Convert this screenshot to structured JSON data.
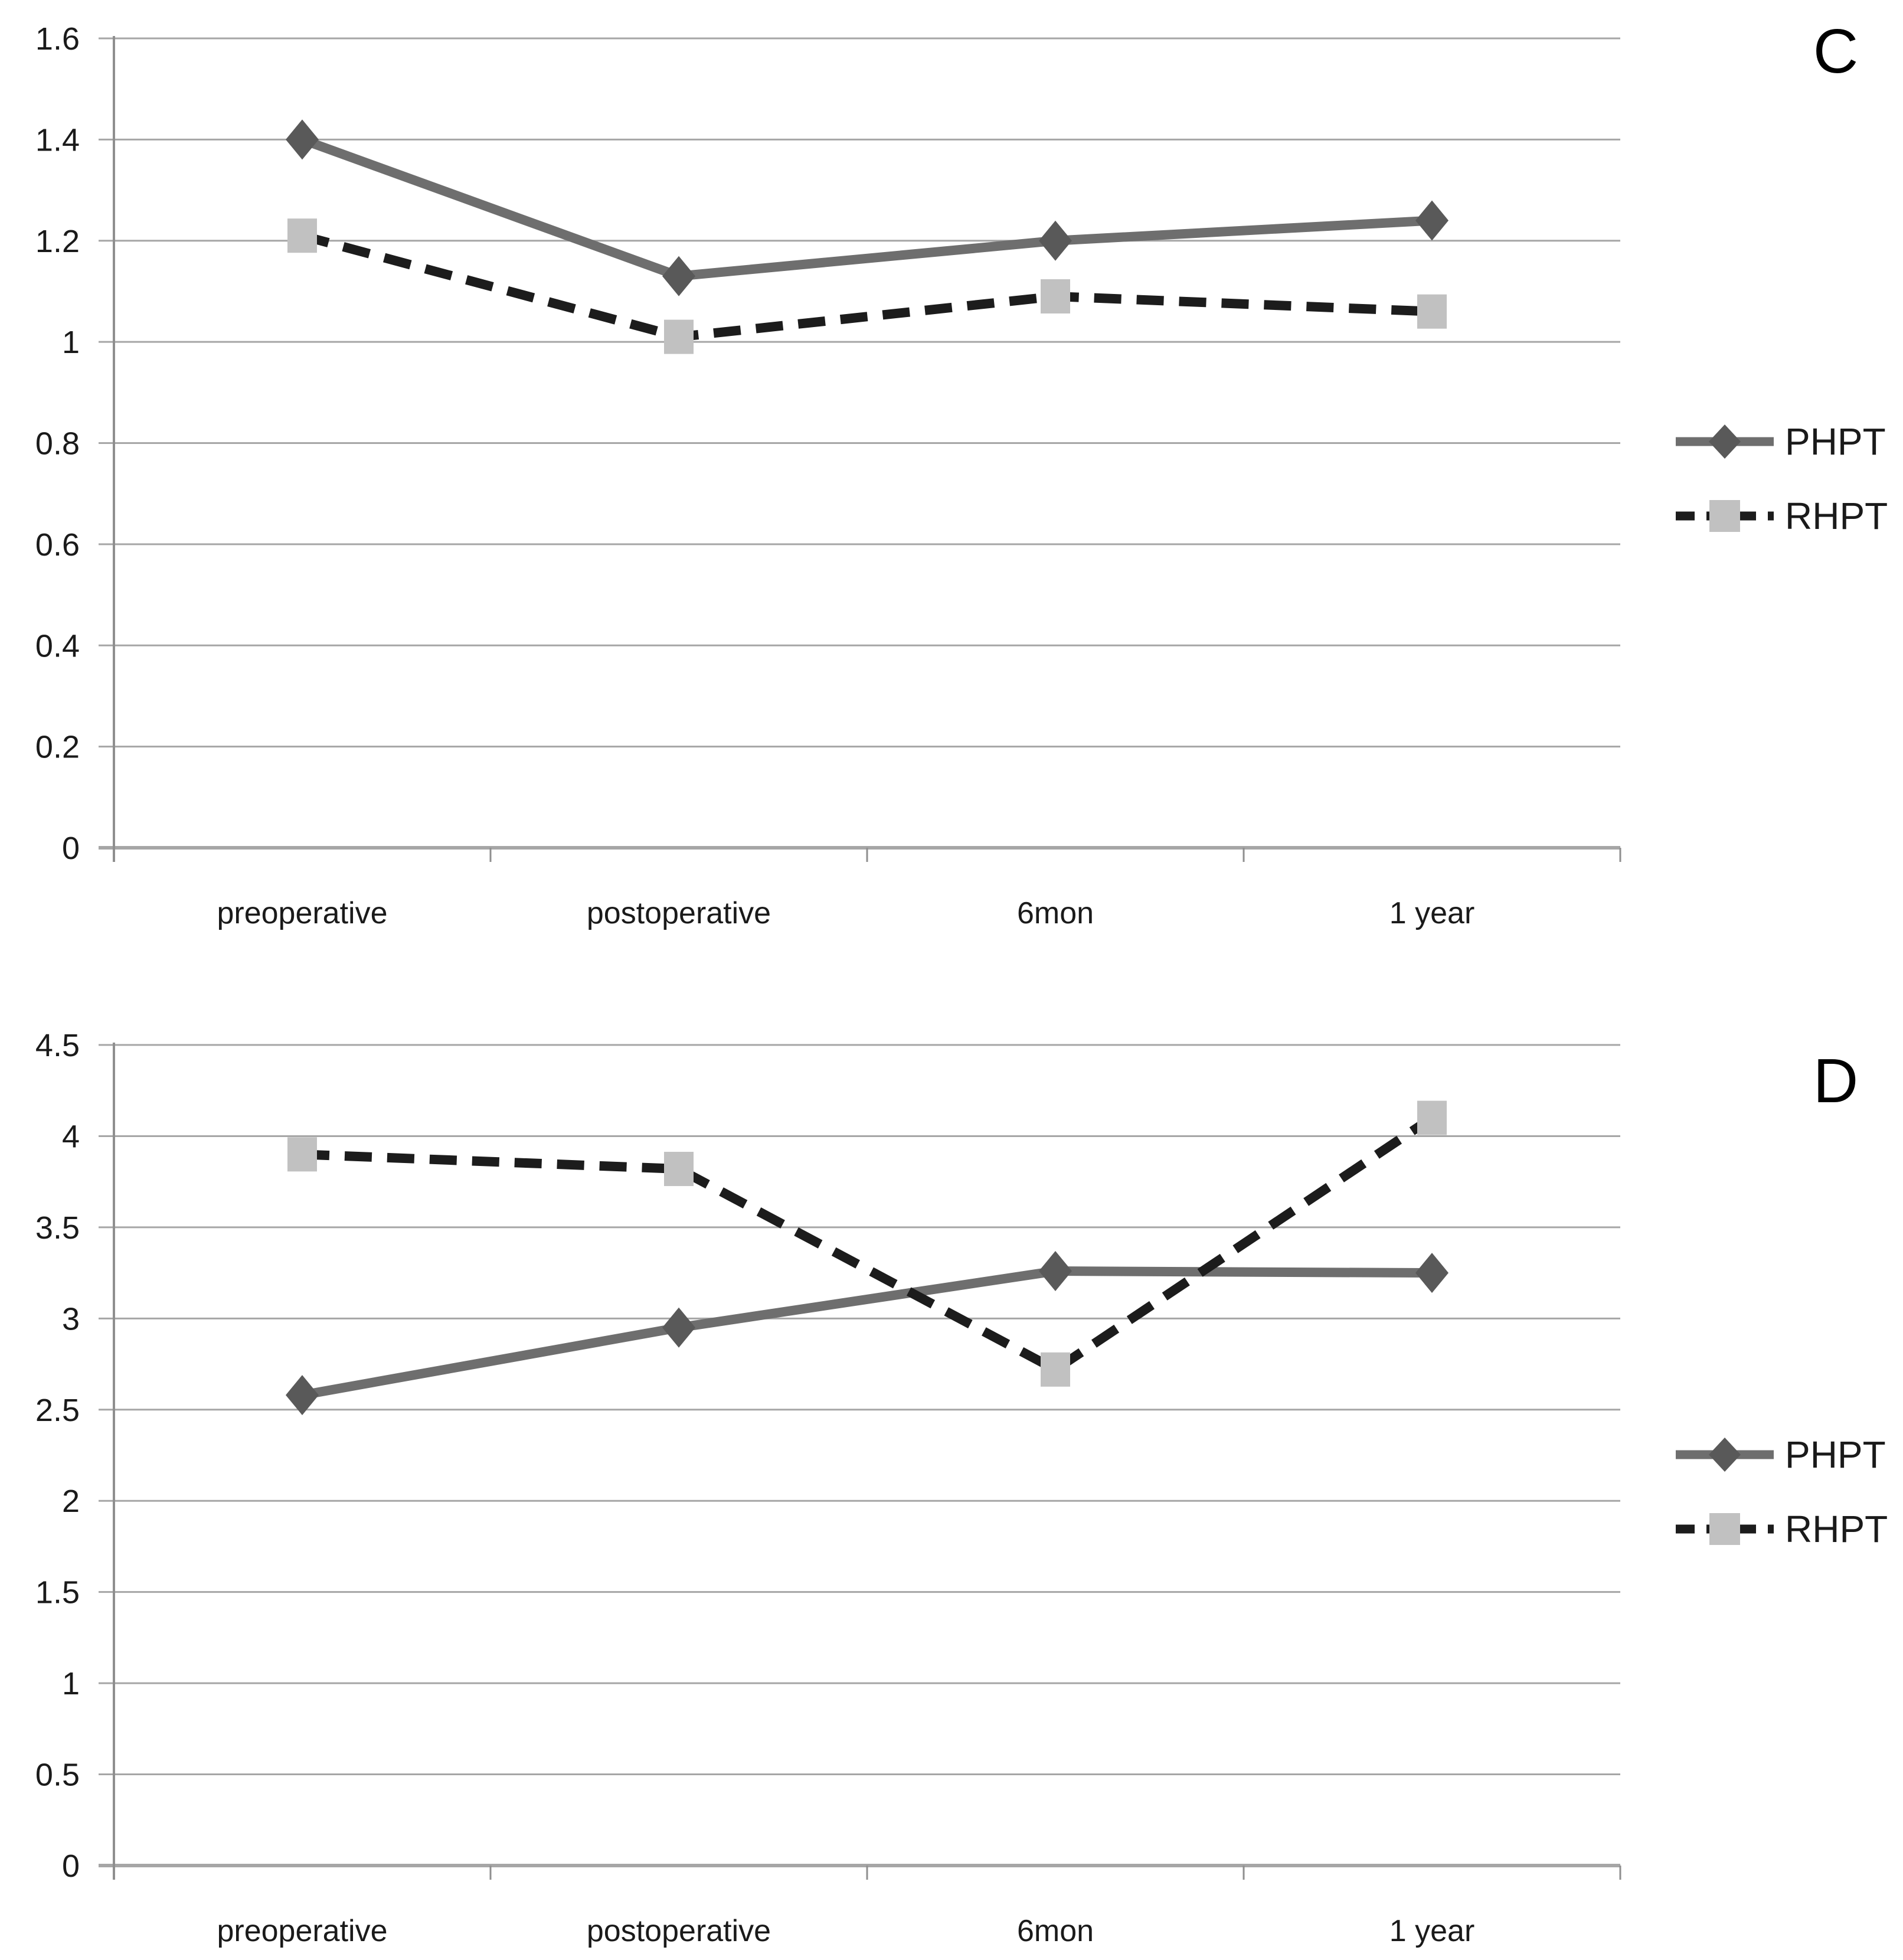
{
  "figure": {
    "background": "#ffffff"
  },
  "colors": {
    "phpt_line": "#6e6e6e",
    "phpt_marker": "#595959",
    "rhpt_line": "#1c1c1c",
    "rhpt_marker": "#c1c1c1",
    "gridline": "#a6a6a6",
    "axis": "#8f8f8f",
    "text": "#1a1a1a"
  },
  "chart_data": [
    {
      "type": "line",
      "panel_label": "C",
      "categories": [
        "preoperative",
        "postoperative",
        "6mon",
        "1 year"
      ],
      "series": [
        {
          "name": "PHPT",
          "line": "solid",
          "marker": "diamond",
          "values": [
            1.4,
            1.13,
            1.2,
            1.24
          ]
        },
        {
          "name": "RHPT",
          "line": "dashed",
          "marker": "square",
          "values": [
            1.21,
            1.01,
            1.09,
            1.06
          ]
        }
      ],
      "ylim": [
        0,
        1.6
      ],
      "ytick_step": 0.2,
      "ytick_labels": [
        "0",
        "0.2",
        "0.4",
        "0.6",
        "0.8",
        "1",
        "1.2",
        "1.4",
        "1.6"
      ],
      "grid": true,
      "legend_position": "right",
      "legend_entries": [
        "PHPT",
        "RHPT"
      ]
    },
    {
      "type": "line",
      "panel_label": "D",
      "categories": [
        "preoperative",
        "postoperative",
        "6mon",
        "1 year"
      ],
      "series": [
        {
          "name": "PHPT",
          "line": "solid",
          "marker": "diamond",
          "values": [
            2.58,
            2.95,
            3.26,
            3.25
          ]
        },
        {
          "name": "RHPT",
          "line": "dashed",
          "marker": "square",
          "values": [
            3.9,
            3.82,
            2.72,
            4.1
          ]
        }
      ],
      "ylim": [
        0,
        4.5
      ],
      "ytick_step": 0.5,
      "ytick_labels": [
        "0",
        "0.5",
        "1",
        "1.5",
        "2",
        "2.5",
        "3",
        "3.5",
        "4",
        "4.5"
      ],
      "grid": true,
      "legend_position": "right",
      "legend_entries": [
        "PHPT",
        "RHPT"
      ]
    }
  ]
}
